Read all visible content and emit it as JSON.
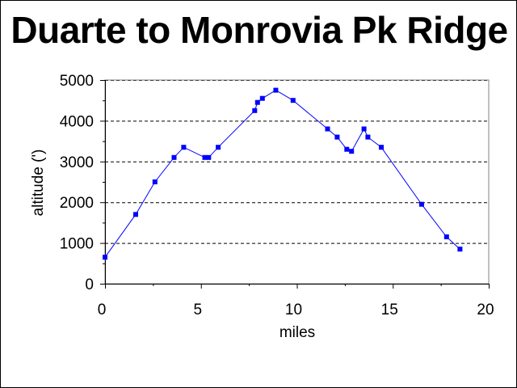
{
  "chart_data": {
    "type": "line",
    "title": "Duarte to Monrovia Pk Ridge",
    "xlabel": "miles",
    "ylabel": "altitude (')",
    "xlim": [
      0,
      20
    ],
    "ylim": [
      0,
      5000
    ],
    "x_ticks": [
      0,
      5,
      10,
      15,
      20
    ],
    "y_ticks": [
      0,
      1000,
      2000,
      3000,
      4000,
      5000
    ],
    "x_tick_labels": [
      "0",
      "5",
      "10",
      "15",
      "20"
    ],
    "y_tick_labels": [
      "0",
      "1000",
      "2000",
      "3000",
      "4000",
      "5000"
    ],
    "grid": "horizontal dashed",
    "legend": "none",
    "series": [
      {
        "color": "#0000ff",
        "marker": "square",
        "x": [
          0.0,
          1.6,
          2.6,
          3.6,
          4.1,
          5.2,
          5.4,
          5.9,
          7.8,
          7.95,
          8.2,
          8.9,
          9.8,
          11.6,
          12.1,
          12.6,
          12.85,
          13.5,
          13.7,
          14.4,
          16.5,
          17.8,
          18.5
        ],
        "y": [
          650,
          1700,
          2500,
          3100,
          3350,
          3100,
          3100,
          3350,
          4250,
          4450,
          4550,
          4750,
          4500,
          3800,
          3600,
          3300,
          3250,
          3800,
          3600,
          3350,
          1950,
          1150,
          850
        ]
      }
    ]
  }
}
